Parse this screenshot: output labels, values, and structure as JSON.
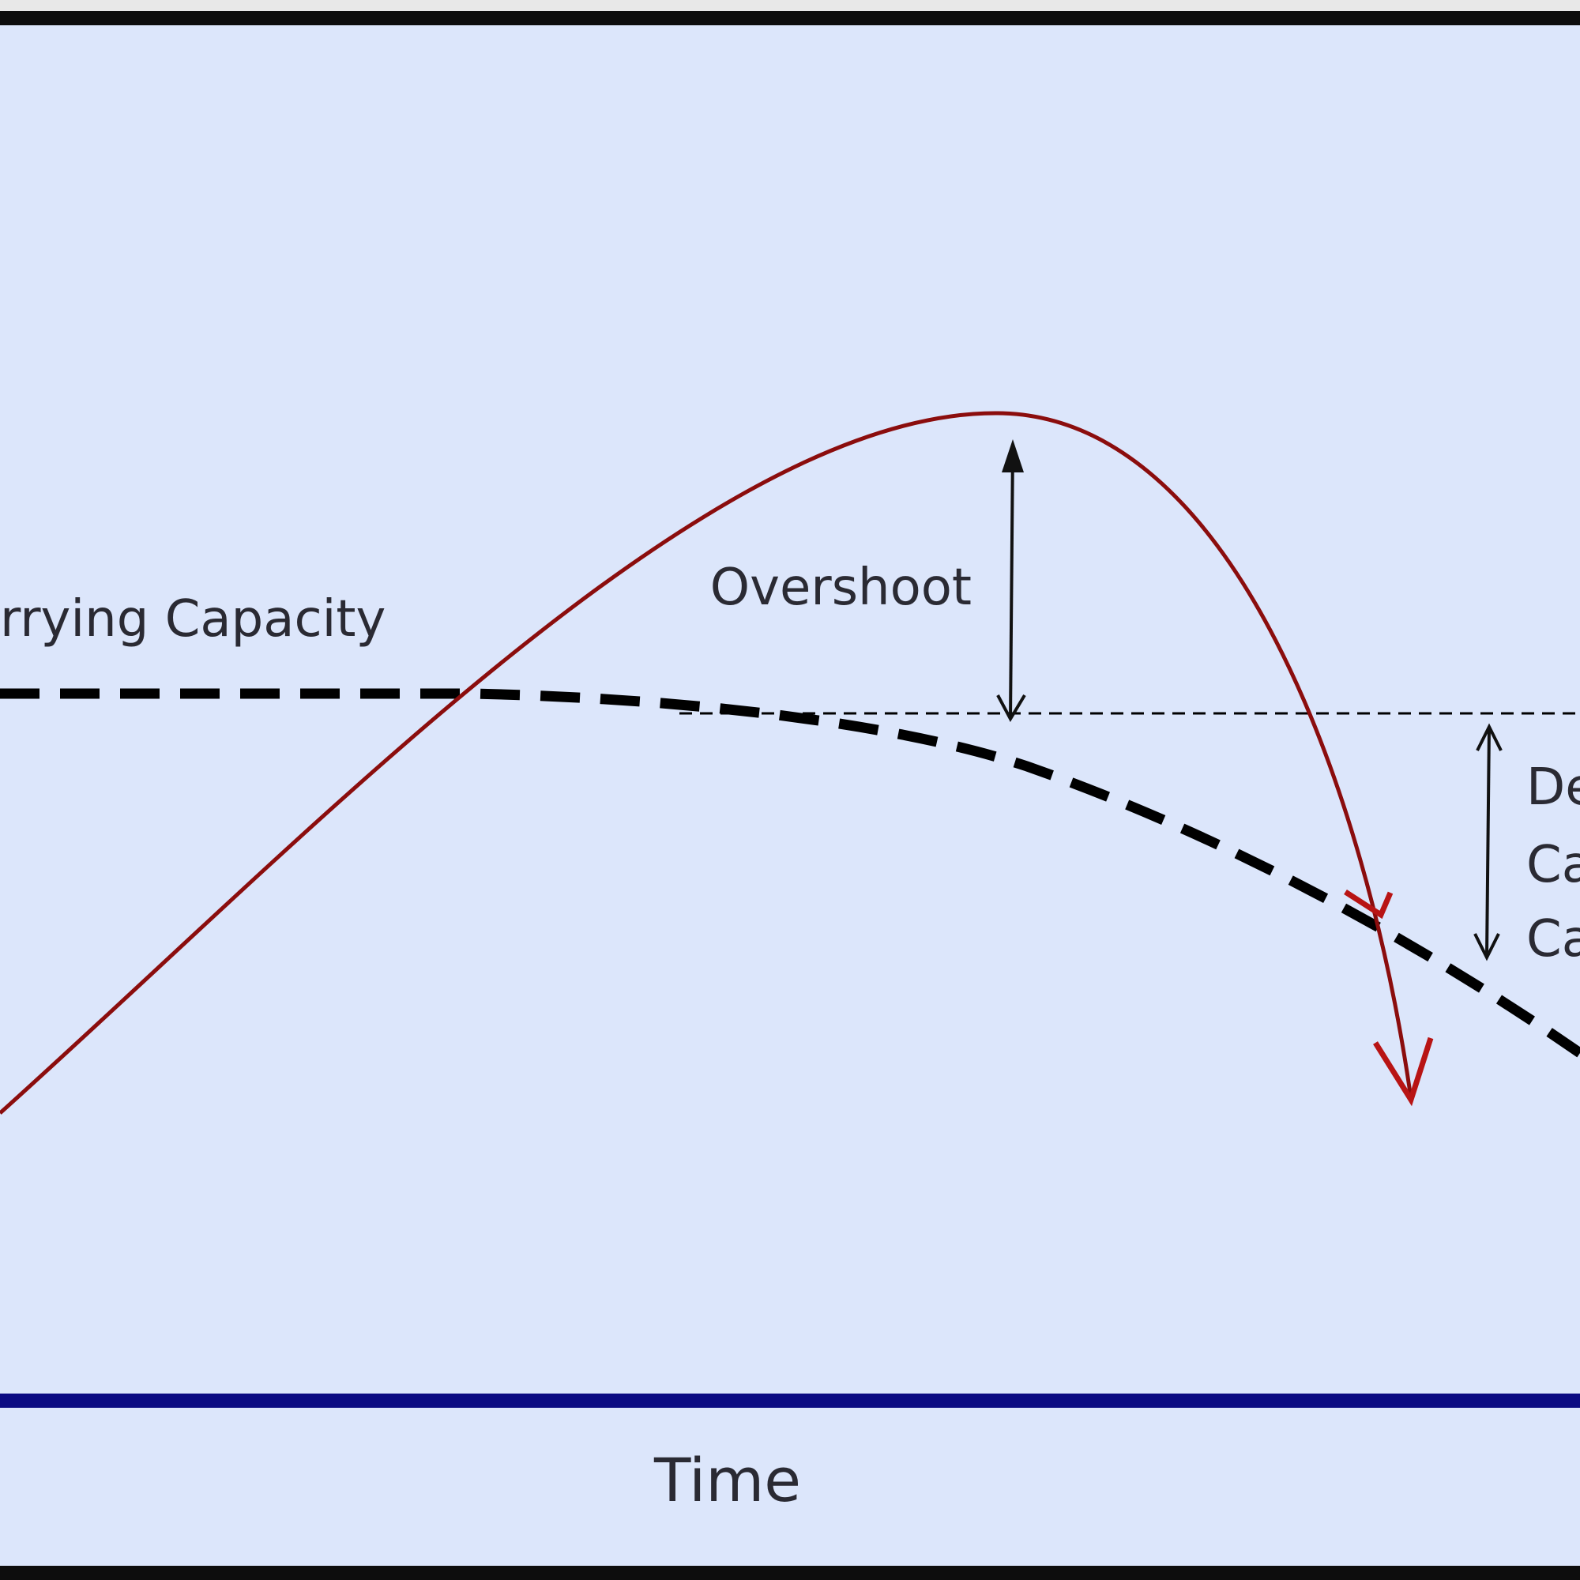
{
  "labels": {
    "carrying_capacity": "rrying Capacity",
    "overshoot": "Overshoot",
    "degraded": [
      "De",
      "Ca",
      "Ca"
    ],
    "x_axis": "Time"
  }
}
